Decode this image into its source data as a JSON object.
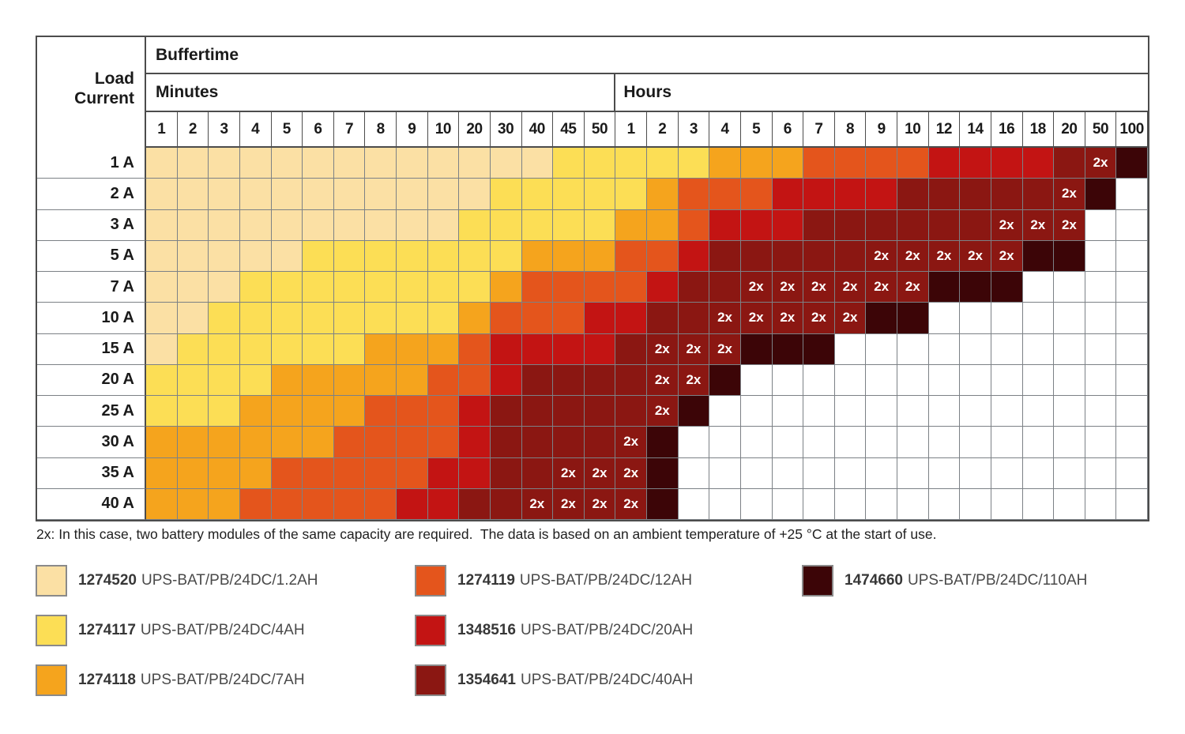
{
  "marker_label": "2x",
  "colors": {
    "C": "#FBE0A4",
    "Y": "#FCDE55",
    "A": "#F5A41D",
    "O": "#E4551C",
    "R": "#C31413",
    "D": "#8B1712",
    "K": "#3C0507",
    "W": "#FFFFFF"
  },
  "note": "2x: In this case, two battery modules of the same capacity are required.  The data is based on an ambient temperature of +25 °C at the start of use.",
  "legend": {
    "columns": [
      [
        {
          "part": "1274520",
          "name": "UPS-BAT/PB/24DC/1.2AH",
          "color_key": "C"
        },
        {
          "part": "1274117",
          "name": "UPS-BAT/PB/24DC/4AH",
          "color_key": "Y"
        },
        {
          "part": "1274118",
          "name": "UPS-BAT/PB/24DC/7AH",
          "color_key": "A"
        }
      ],
      [
        {
          "part": "1274119",
          "name": "UPS-BAT/PB/24DC/12AH",
          "color_key": "O"
        },
        {
          "part": "1348516",
          "name": "UPS-BAT/PB/24DC/20AH",
          "color_key": "R"
        },
        {
          "part": "1354641",
          "name": "UPS-BAT/PB/24DC/40AH",
          "color_key": "D"
        }
      ],
      [
        {
          "part": "1474660",
          "name": "UPS-BAT/PB/24DC/110AH",
          "color_key": "K"
        }
      ]
    ]
  },
  "chart_data": {
    "type": "heatmap",
    "title": "Buffertime",
    "y_label": "Load Current",
    "x_groups": [
      {
        "label": "Minutes",
        "ticks": [
          "1",
          "2",
          "3",
          "4",
          "5",
          "6",
          "7",
          "8",
          "9",
          "10",
          "20",
          "30",
          "40",
          "45",
          "50"
        ]
      },
      {
        "label": "Hours",
        "ticks": [
          "1",
          "2",
          "3",
          "4",
          "5",
          "6",
          "7",
          "8",
          "9",
          "10",
          "12",
          "14",
          "16",
          "18",
          "20",
          "50",
          "100"
        ]
      }
    ],
    "cell_code_legend": {
      "C": "1274520 UPS-BAT/PB/24DC/1.2AH",
      "Y": "1274117 UPS-BAT/PB/24DC/4AH",
      "A": "1274118 UPS-BAT/PB/24DC/7AH",
      "O": "1274119 UPS-BAT/PB/24DC/12AH",
      "R": "1348516 UPS-BAT/PB/24DC/20AH",
      "D": "1354641 UPS-BAT/PB/24DC/40AH",
      "K": "1474660 UPS-BAT/PB/24DC/110AH",
      "W": "not specified",
      "D2": "1354641 UPS-BAT/PB/24DC/40AH, 2x two modules required"
    },
    "rows": [
      {
        "load": "1 A",
        "cells": [
          "C",
          "C",
          "C",
          "C",
          "C",
          "C",
          "C",
          "C",
          "C",
          "C",
          "C",
          "C",
          "C",
          "Y",
          "Y",
          "Y",
          "Y",
          "Y",
          "A",
          "A",
          "A",
          "O",
          "O",
          "O",
          "O",
          "R",
          "R",
          "R",
          "R",
          "D",
          "D2",
          "K"
        ]
      },
      {
        "load": "2 A",
        "cells": [
          "C",
          "C",
          "C",
          "C",
          "C",
          "C",
          "C",
          "C",
          "C",
          "C",
          "C",
          "Y",
          "Y",
          "Y",
          "Y",
          "Y",
          "A",
          "O",
          "O",
          "O",
          "R",
          "R",
          "R",
          "R",
          "D",
          "D",
          "D",
          "D",
          "D",
          "D2",
          "K",
          "W"
        ]
      },
      {
        "load": "3 A",
        "cells": [
          "C",
          "C",
          "C",
          "C",
          "C",
          "C",
          "C",
          "C",
          "C",
          "C",
          "Y",
          "Y",
          "Y",
          "Y",
          "Y",
          "A",
          "A",
          "O",
          "R",
          "R",
          "R",
          "D",
          "D",
          "D",
          "D",
          "D",
          "D",
          "D2",
          "D2",
          "D2",
          "W",
          "W"
        ]
      },
      {
        "load": "5 A",
        "cells": [
          "C",
          "C",
          "C",
          "C",
          "C",
          "Y",
          "Y",
          "Y",
          "Y",
          "Y",
          "Y",
          "Y",
          "A",
          "A",
          "A",
          "O",
          "O",
          "R",
          "D",
          "D",
          "D",
          "D",
          "D",
          "D2",
          "D2",
          "D2",
          "D2",
          "D2",
          "K",
          "K",
          "W",
          "W"
        ]
      },
      {
        "load": "7 A",
        "cells": [
          "C",
          "C",
          "C",
          "Y",
          "Y",
          "Y",
          "Y",
          "Y",
          "Y",
          "Y",
          "Y",
          "A",
          "O",
          "O",
          "O",
          "O",
          "R",
          "D",
          "D",
          "D2",
          "D2",
          "D2",
          "D2",
          "D2",
          "D2",
          "K",
          "K",
          "K",
          "W",
          "W",
          "W",
          "W"
        ]
      },
      {
        "load": "10 A",
        "cells": [
          "C",
          "C",
          "Y",
          "Y",
          "Y",
          "Y",
          "Y",
          "Y",
          "Y",
          "Y",
          "A",
          "O",
          "O",
          "O",
          "R",
          "R",
          "D",
          "D",
          "D2",
          "D2",
          "D2",
          "D2",
          "D2",
          "K",
          "K",
          "W",
          "W",
          "W",
          "W",
          "W",
          "W",
          "W"
        ]
      },
      {
        "load": "15 A",
        "cells": [
          "C",
          "Y",
          "Y",
          "Y",
          "Y",
          "Y",
          "Y",
          "A",
          "A",
          "A",
          "O",
          "R",
          "R",
          "R",
          "R",
          "D",
          "D2",
          "D2",
          "D2",
          "K",
          "K",
          "K",
          "W",
          "W",
          "W",
          "W",
          "W",
          "W",
          "W",
          "W",
          "W",
          "W"
        ]
      },
      {
        "load": "20 A",
        "cells": [
          "Y",
          "Y",
          "Y",
          "Y",
          "A",
          "A",
          "A",
          "A",
          "A",
          "O",
          "O",
          "R",
          "D",
          "D",
          "D",
          "D",
          "D2",
          "D2",
          "K",
          "W",
          "W",
          "W",
          "W",
          "W",
          "W",
          "W",
          "W",
          "W",
          "W",
          "W",
          "W",
          "W"
        ]
      },
      {
        "load": "25 A",
        "cells": [
          "Y",
          "Y",
          "Y",
          "A",
          "A",
          "A",
          "A",
          "O",
          "O",
          "O",
          "R",
          "D",
          "D",
          "D",
          "D",
          "D",
          "D2",
          "K",
          "W",
          "W",
          "W",
          "W",
          "W",
          "W",
          "W",
          "W",
          "W",
          "W",
          "W",
          "W",
          "W",
          "W"
        ]
      },
      {
        "load": "30 A",
        "cells": [
          "A",
          "A",
          "A",
          "A",
          "A",
          "A",
          "O",
          "O",
          "O",
          "O",
          "R",
          "D",
          "D",
          "D",
          "D",
          "D2",
          "K",
          "W",
          "W",
          "W",
          "W",
          "W",
          "W",
          "W",
          "W",
          "W",
          "W",
          "W",
          "W",
          "W",
          "W",
          "W"
        ]
      },
      {
        "load": "35 A",
        "cells": [
          "A",
          "A",
          "A",
          "A",
          "O",
          "O",
          "O",
          "O",
          "O",
          "R",
          "R",
          "D",
          "D",
          "D2",
          "D2",
          "D2",
          "K",
          "W",
          "W",
          "W",
          "W",
          "W",
          "W",
          "W",
          "W",
          "W",
          "W",
          "W",
          "W",
          "W",
          "W",
          "W"
        ]
      },
      {
        "load": "40 A",
        "cells": [
          "A",
          "A",
          "A",
          "O",
          "O",
          "O",
          "O",
          "O",
          "R",
          "R",
          "D",
          "D",
          "D2",
          "D2",
          "D2",
          "D2",
          "K",
          "W",
          "W",
          "W",
          "W",
          "W",
          "W",
          "W",
          "W",
          "W",
          "W",
          "W",
          "W",
          "W",
          "W",
          "W"
        ]
      }
    ]
  }
}
